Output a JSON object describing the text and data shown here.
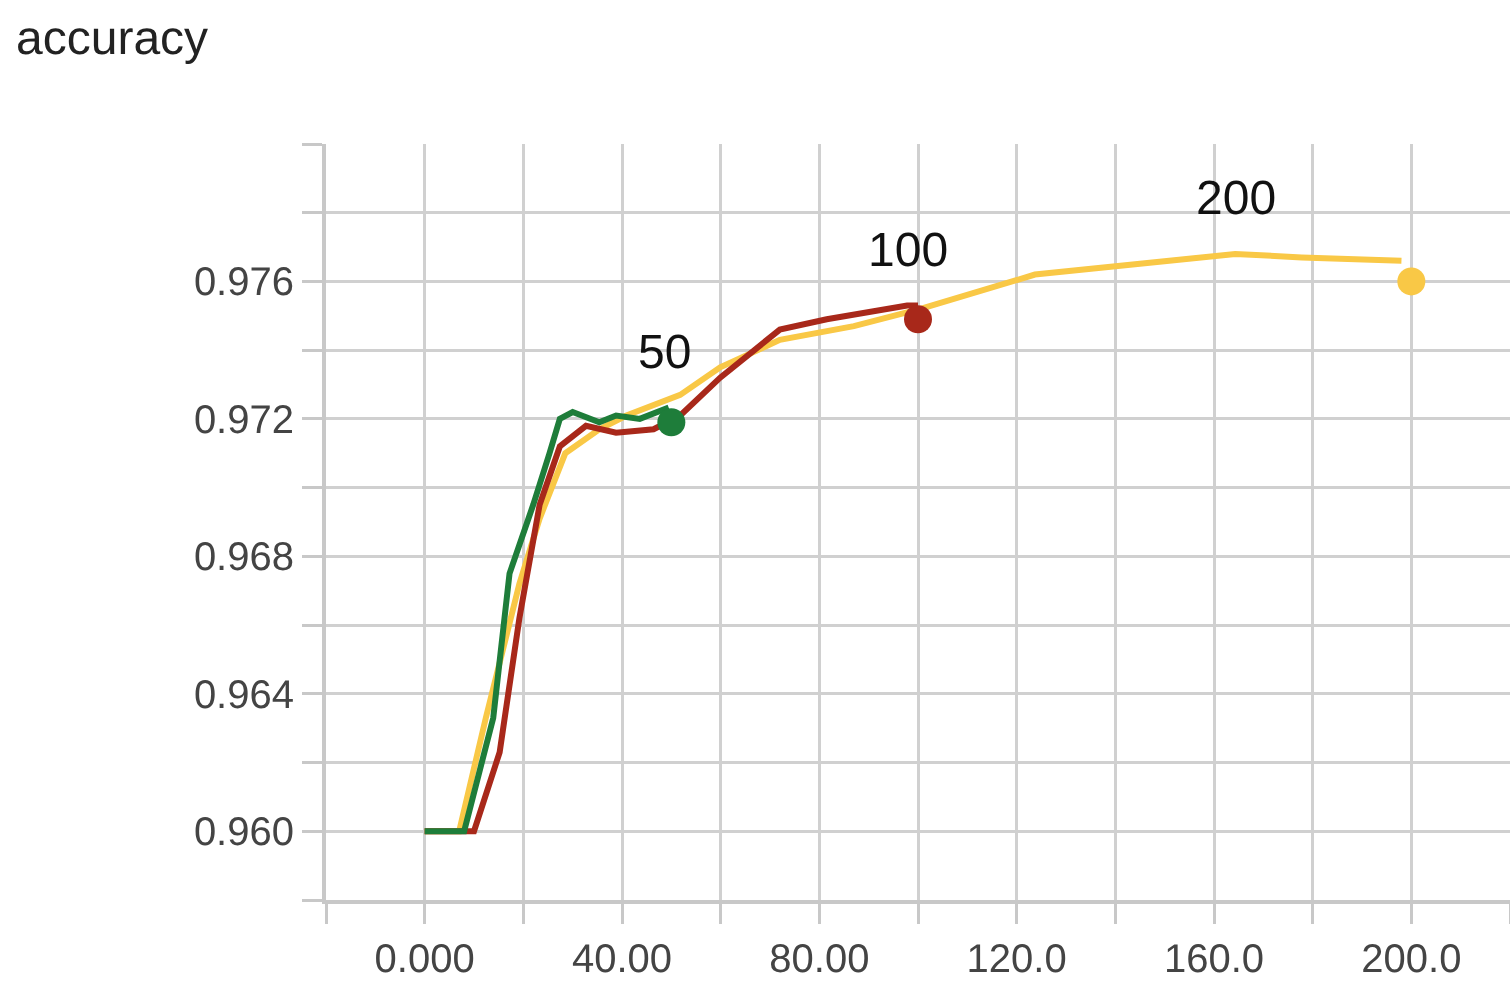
{
  "chart_data": {
    "type": "line",
    "title": "accuracy",
    "xlim": [
      -20,
      220
    ],
    "xticks": [
      {
        "value": -20,
        "label": null
      },
      {
        "value": 0,
        "label": "0.000"
      },
      {
        "value": 20,
        "label": null
      },
      {
        "value": 40,
        "label": "40.00"
      },
      {
        "value": 60,
        "label": null
      },
      {
        "value": 80,
        "label": "80.00"
      },
      {
        "value": 100,
        "label": null
      },
      {
        "value": 120,
        "label": "120.0"
      },
      {
        "value": 140,
        "label": null
      },
      {
        "value": 160,
        "label": "160.0"
      },
      {
        "value": 180,
        "label": null
      },
      {
        "value": 200,
        "label": "200.0"
      },
      {
        "value": 220,
        "label": null
      }
    ],
    "ylim": [
      0.958,
      0.98
    ],
    "yticks": [
      {
        "value": 0.958,
        "label": null
      },
      {
        "value": 0.96,
        "label": "0.960"
      },
      {
        "value": 0.962,
        "label": null
      },
      {
        "value": 0.964,
        "label": "0.964"
      },
      {
        "value": 0.966,
        "label": null
      },
      {
        "value": 0.968,
        "label": "0.968"
      },
      {
        "value": 0.97,
        "label": null
      },
      {
        "value": 0.972,
        "label": "0.972"
      },
      {
        "value": 0.974,
        "label": null
      },
      {
        "value": 0.976,
        "label": "0.976"
      },
      {
        "value": 0.978,
        "label": null
      },
      {
        "value": 0.98,
        "label": null
      }
    ],
    "grid": true,
    "legend": false,
    "marker": "none",
    "line_style": "solid",
    "series": [
      {
        "name": "200",
        "color": "#f9c846",
        "x": [
          0,
          7,
          12.4,
          19.2,
          23.3,
          28.5,
          35.4,
          40.9,
          51.8,
          59.9,
          72,
          87,
          100.5,
          123.7,
          144,
          164.3,
          177.8,
          198
        ],
        "values": [
          0.96,
          0.96,
          0.9633,
          0.9672,
          0.9691,
          0.971,
          0.9717,
          0.9721,
          0.9727,
          0.9735,
          0.9743,
          0.9747,
          0.9752,
          0.9762,
          0.9765,
          0.9768,
          0.9767,
          0.9766
        ]
      },
      {
        "name": "100",
        "color": "#a8281a",
        "x": [
          0,
          10,
          15.2,
          19.2,
          23.3,
          27.4,
          32.7,
          38.8,
          46.4,
          51.8,
          59.9,
          72,
          81.5,
          97.8,
          100
        ],
        "values": [
          0.96,
          0.96,
          0.9623,
          0.9662,
          0.9695,
          0.9712,
          0.9718,
          0.9716,
          0.9717,
          0.9721,
          0.9732,
          0.9746,
          0.9749,
          0.9753,
          0.9753
        ]
      },
      {
        "name": "50",
        "color": "#1e7d3a",
        "x": [
          0,
          8,
          13.9,
          17.2,
          22,
          25.3,
          27.4,
          30,
          35.4,
          38.8,
          43.6,
          48.9,
          50
        ],
        "values": [
          0.96,
          0.96,
          0.9633,
          0.9675,
          0.9695,
          0.971,
          0.972,
          0.9722,
          0.9719,
          0.9721,
          0.972,
          0.9723,
          0.9719
        ]
      },
      {
        "type": "scatter",
        "marker": "circle",
        "color": "#f9c846",
        "x": [
          200
        ],
        "values": [
          0.976
        ]
      },
      {
        "type": "scatter",
        "marker": "circle",
        "color": "#a8281a",
        "x": [
          100
        ],
        "values": [
          0.9749
        ]
      },
      {
        "type": "scatter",
        "marker": "circle",
        "color": "#1e7d3a",
        "x": [
          50
        ],
        "values": [
          0.9719
        ]
      }
    ]
  }
}
